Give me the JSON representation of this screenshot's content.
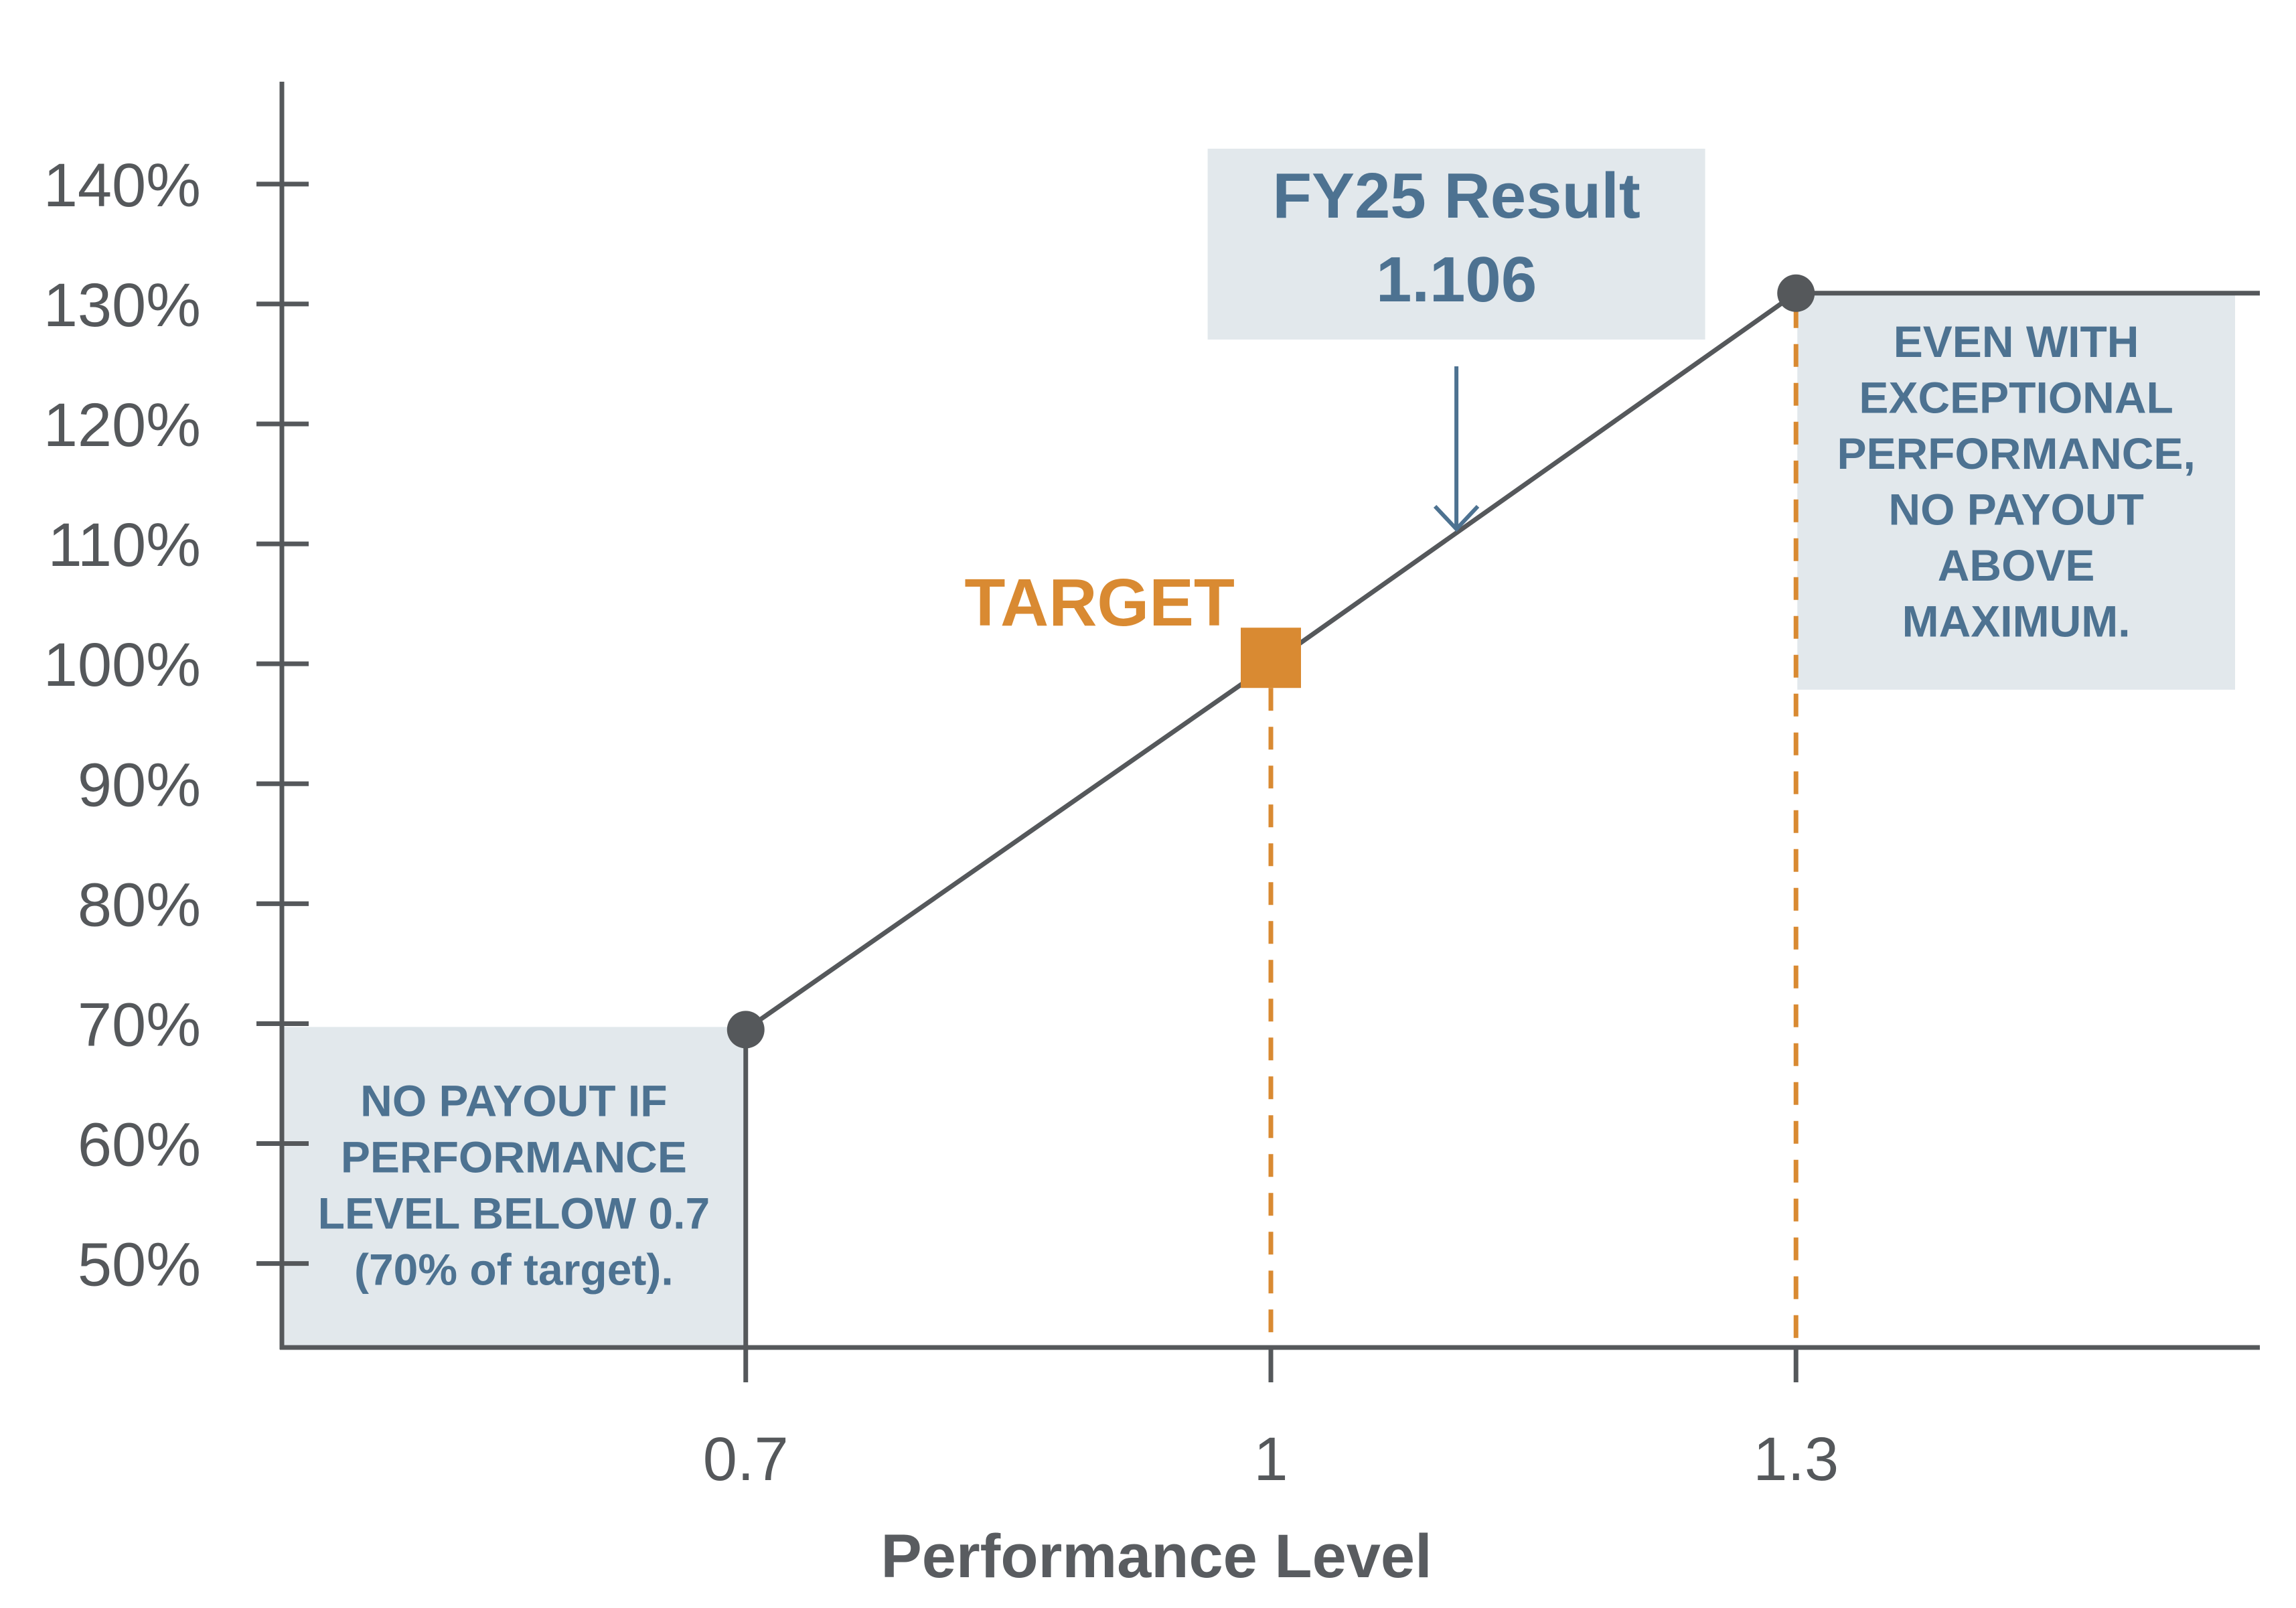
{
  "chart_data": {
    "type": "line",
    "title": "",
    "xlabel": "Performance Level",
    "ylabel": "",
    "x_ticks": [
      0.7,
      1,
      1.3
    ],
    "x_tick_labels": [
      "0.7",
      "1",
      "1.3"
    ],
    "y_ticks": [
      50,
      60,
      70,
      80,
      90,
      100,
      110,
      120,
      130,
      140
    ],
    "y_tick_labels": [
      "50%",
      "60%",
      "70%",
      "80%",
      "90%",
      "100%",
      "110%",
      "120%",
      "130%",
      "140%"
    ],
    "xlim": [
      0.435,
      1.565
    ],
    "ylim": [
      43,
      153
    ],
    "grid": false,
    "series": [
      {
        "values_x": [
          0.7,
          1.0,
          1.3,
          1.565
        ],
        "values_y": [
          69.5,
          100,
          130.9,
          130.9
        ]
      }
    ],
    "endpoints": [
      {
        "x": 0.7,
        "y": 69.5
      },
      {
        "x": 1.3,
        "y": 130.9
      }
    ],
    "zero_payout_drop": {
      "x": 0.7,
      "y_from": 69.5
    },
    "target": {
      "label": "TARGET",
      "x": 1.0,
      "y": 100.5
    },
    "guides": [
      {
        "x": 1.0
      },
      {
        "x": 1.3
      }
    ],
    "result": {
      "title": "FY25 Result",
      "value": "1.106",
      "x": 1.106
    },
    "annotations": {
      "below": [
        "NO PAYOUT IF",
        "PERFORMANCE",
        "LEVEL BELOW 0.7",
        "(70% of target)."
      ],
      "above": [
        "EVEN WITH",
        "EXCEPTIONAL",
        "PERFORMANCE,",
        "NO PAYOUT",
        "ABOVE",
        "MAXIMUM."
      ]
    },
    "colors": {
      "axis": "#55585b",
      "line": "#55585b",
      "target": "#d98a32",
      "guide": "#d98a32",
      "box_fill": "#e2e8ec",
      "box_text": "#4d7291",
      "arrow": "#4d7291"
    }
  }
}
